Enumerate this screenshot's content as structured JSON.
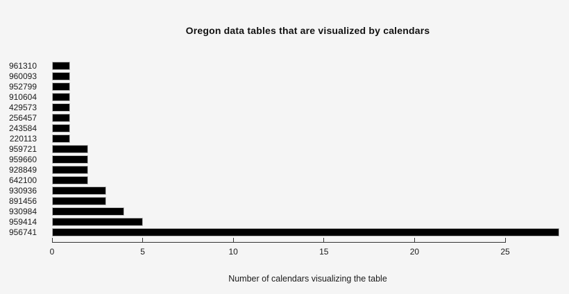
{
  "page": {
    "background_color": "#f5f5f5",
    "text_color": "#1a1a1a"
  },
  "chart_data": {
    "type": "bar",
    "orientation": "horizontal",
    "title": "Oregon data tables that are visualized by calendars",
    "xlabel": "Number of calendars visualizing the table",
    "ylabel": "",
    "categories": [
      "961310",
      "960093",
      "952799",
      "910604",
      "429573",
      "256457",
      "243584",
      "220113",
      "959721",
      "959660",
      "928849",
      "642100",
      "930936",
      "891456",
      "930984",
      "959414",
      "956741"
    ],
    "values": [
      1,
      1,
      1,
      1,
      1,
      1,
      1,
      1,
      2,
      2,
      2,
      2,
      3,
      3,
      4,
      5,
      28
    ],
    "xlim": [
      0,
      25
    ],
    "x_ticks": [
      0,
      5,
      10,
      15,
      20,
      25
    ],
    "grid": false,
    "legend": "none",
    "bar_color": "#000000",
    "bar_border_color": "#bdbdbd",
    "axis_color": "#333333"
  }
}
